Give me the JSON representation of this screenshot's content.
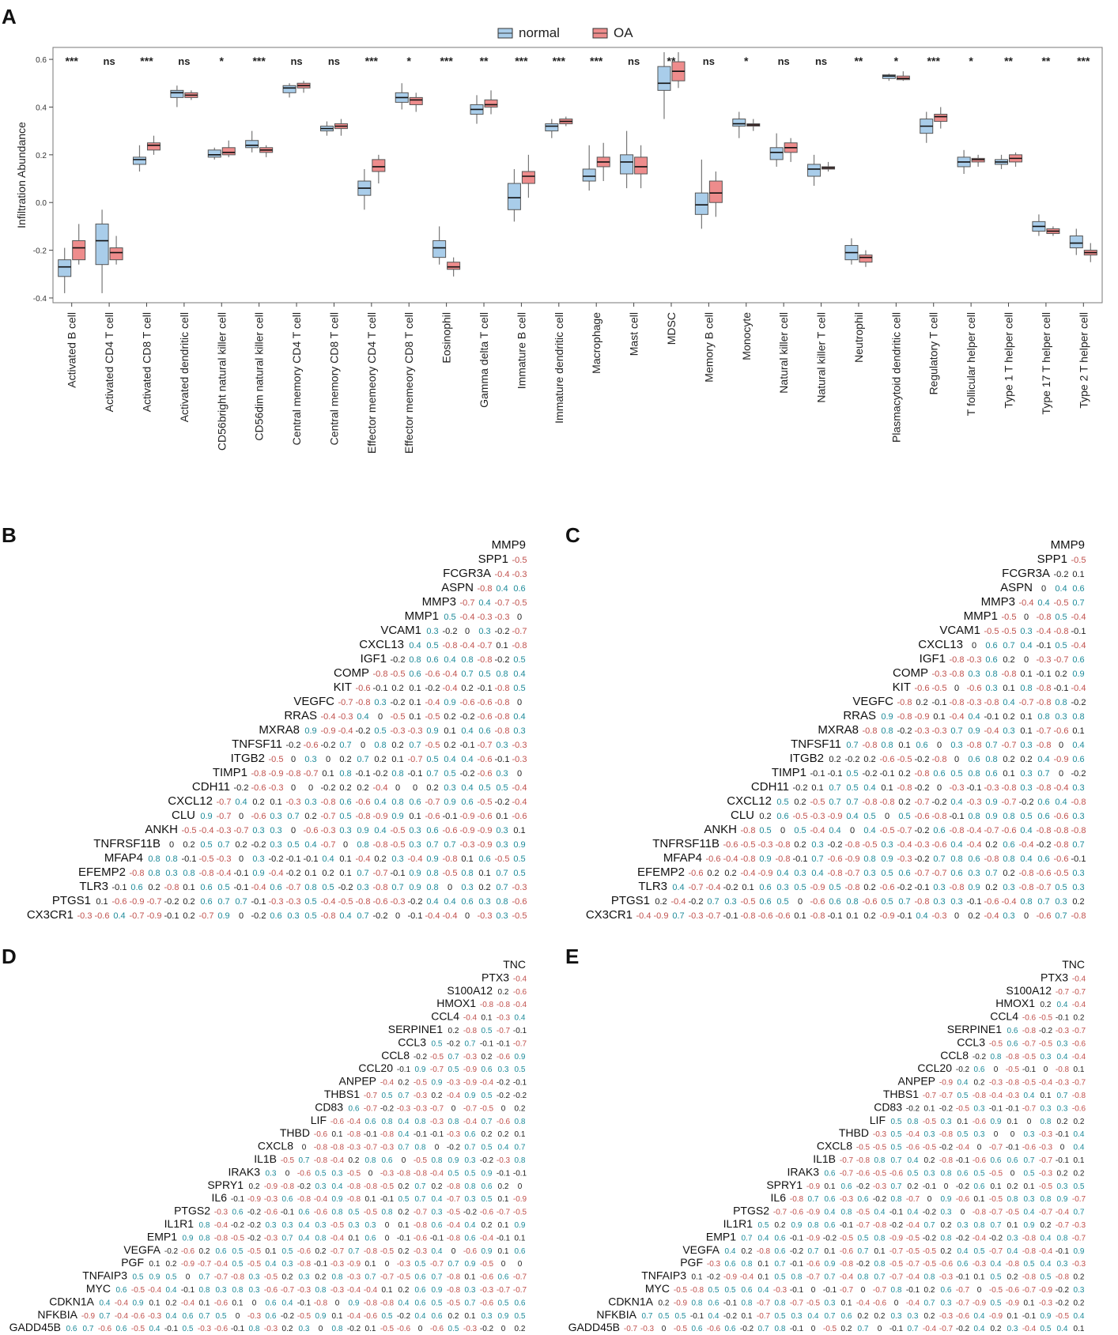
{
  "panels": {
    "A": "A",
    "B": "B",
    "C": "C",
    "D": "D",
    "E": "E"
  },
  "colors": {
    "normal": "#a9cdea",
    "oa": "#ee8c8c",
    "pos": "#1d8a99",
    "neg": "#c0514d",
    "zero": "#222222"
  },
  "chart_data": [
    {
      "type": "box",
      "title": "",
      "ylabel": "Infiltration Abundance",
      "ylim": [
        -0.42,
        0.65
      ],
      "yticks": [
        "-0.4",
        "-0.2",
        "0.0",
        "0.2",
        "0.4",
        "0.6"
      ],
      "ytick_values": [
        -0.4,
        -0.2,
        0.0,
        0.2,
        0.4,
        0.6
      ],
      "legend": {
        "position": "top-center",
        "entries": [
          "normal",
          "OA"
        ]
      },
      "categories": [
        "Activated B cell",
        "Activated CD4 T cell",
        "Activated CD8 T cell",
        "Activated dendritic cell",
        "CD56bright natural killer cell",
        "CD56dim natural killer cell",
        "Central memory CD4 T cell",
        "Central memory CD8 T cell",
        "Effector memeory CD4 T cell",
        "Effector memeory CD8 T cell",
        "Eosinophil",
        "Gamma delta T cell",
        "Immature  B cell",
        "Immature dendritic cell",
        "Macrophage",
        "Mast cell",
        "MDSC",
        "Memory B cell",
        "Monocyte",
        "Natural killer cell",
        "Natural killer T cell",
        "Neutrophil",
        "Plasmacytoid dendritic cell",
        "Regulatory T cell",
        "T follicular helper cell",
        "Type 1 T helper cell",
        "Type 17 T helper cell",
        "Type 2 T helper cell"
      ],
      "significance": [
        "***",
        "ns",
        "***",
        "ns",
        "*",
        "***",
        "ns",
        "ns",
        "***",
        "*",
        "***",
        "**",
        "***",
        "***",
        "***",
        "ns",
        "**",
        "ns",
        "*",
        "ns",
        "ns",
        "**",
        "*",
        "***",
        "*",
        "**",
        "**",
        "***"
      ],
      "series": [
        {
          "name": "normal",
          "boxes": [
            [
              -0.38,
              -0.31,
              -0.27,
              -0.24,
              -0.19
            ],
            [
              -0.38,
              -0.26,
              -0.16,
              -0.09,
              -0.03
            ],
            [
              0.13,
              0.16,
              0.18,
              0.19,
              0.24
            ],
            [
              0.4,
              0.44,
              0.46,
              0.47,
              0.49
            ],
            [
              0.18,
              0.19,
              0.2,
              0.22,
              0.23
            ],
            [
              0.21,
              0.23,
              0.24,
              0.26,
              0.3
            ],
            [
              0.44,
              0.46,
              0.48,
              0.49,
              0.5
            ],
            [
              0.28,
              0.3,
              0.31,
              0.32,
              0.34
            ],
            [
              -0.03,
              0.03,
              0.06,
              0.09,
              0.14
            ],
            [
              0.39,
              0.42,
              0.44,
              0.46,
              0.5
            ],
            [
              -0.26,
              -0.23,
              -0.19,
              -0.16,
              -0.1
            ],
            [
              0.33,
              0.37,
              0.39,
              0.41,
              0.45
            ],
            [
              -0.08,
              -0.03,
              0.02,
              0.08,
              0.14
            ],
            [
              0.27,
              0.3,
              0.32,
              0.33,
              0.35
            ],
            [
              0.05,
              0.09,
              0.11,
              0.14,
              0.24
            ],
            [
              0.06,
              0.12,
              0.17,
              0.2,
              0.3
            ],
            [
              0.35,
              0.47,
              0.5,
              0.57,
              0.63
            ],
            [
              -0.11,
              -0.05,
              -0.01,
              0.04,
              0.18
            ],
            [
              0.27,
              0.32,
              0.33,
              0.35,
              0.38
            ],
            [
              0.15,
              0.18,
              0.21,
              0.23,
              0.29
            ],
            [
              0.07,
              0.11,
              0.14,
              0.16,
              0.2
            ],
            [
              -0.26,
              -0.24,
              -0.21,
              -0.18,
              -0.15
            ],
            [
              0.51,
              0.52,
              0.53,
              0.535,
              0.54
            ],
            [
              0.25,
              0.29,
              0.32,
              0.35,
              0.38
            ],
            [
              0.12,
              0.15,
              0.17,
              0.19,
              0.22
            ],
            [
              0.14,
              0.16,
              0.17,
              0.18,
              0.2
            ],
            [
              -0.14,
              -0.12,
              -0.1,
              -0.08,
              -0.05
            ],
            [
              -0.22,
              -0.19,
              -0.17,
              -0.14,
              -0.11
            ]
          ]
        },
        {
          "name": "OA",
          "boxes": [
            [
              -0.26,
              -0.24,
              -0.19,
              -0.16,
              -0.09
            ],
            [
              -0.26,
              -0.24,
              -0.21,
              -0.19,
              -0.14
            ],
            [
              0.2,
              0.22,
              0.24,
              0.25,
              0.28
            ],
            [
              0.43,
              0.44,
              0.45,
              0.46,
              0.47
            ],
            [
              0.19,
              0.2,
              0.21,
              0.23,
              0.26
            ],
            [
              0.19,
              0.21,
              0.22,
              0.23,
              0.24
            ],
            [
              0.46,
              0.48,
              0.49,
              0.5,
              0.51
            ],
            [
              0.28,
              0.31,
              0.32,
              0.33,
              0.35
            ],
            [
              0.08,
              0.13,
              0.15,
              0.18,
              0.2
            ],
            [
              0.38,
              0.41,
              0.43,
              0.44,
              0.46
            ],
            [
              -0.31,
              -0.28,
              -0.27,
              -0.25,
              -0.23
            ],
            [
              0.37,
              0.4,
              0.41,
              0.43,
              0.47
            ],
            [
              0.02,
              0.08,
              0.11,
              0.13,
              0.2
            ],
            [
              0.32,
              0.33,
              0.34,
              0.35,
              0.36
            ],
            [
              0.09,
              0.15,
              0.17,
              0.19,
              0.25
            ],
            [
              0.06,
              0.12,
              0.15,
              0.19,
              0.24
            ],
            [
              0.48,
              0.51,
              0.55,
              0.59,
              0.63
            ],
            [
              -0.06,
              0.0,
              0.04,
              0.09,
              0.13
            ],
            [
              0.3,
              0.32,
              0.325,
              0.33,
              0.35
            ],
            [
              0.17,
              0.21,
              0.23,
              0.25,
              0.27
            ],
            [
              0.13,
              0.14,
              0.145,
              0.15,
              0.17
            ],
            [
              -0.27,
              -0.25,
              -0.23,
              -0.22,
              -0.2
            ],
            [
              0.51,
              0.515,
              0.52,
              0.53,
              0.55
            ],
            [
              0.31,
              0.34,
              0.36,
              0.37,
              0.4
            ],
            [
              0.15,
              0.17,
              0.18,
              0.185,
              0.2
            ],
            [
              0.15,
              0.17,
              0.185,
              0.2,
              0.21
            ],
            [
              -0.14,
              -0.13,
              -0.12,
              -0.11,
              -0.1
            ],
            [
              -0.25,
              -0.22,
              -0.21,
              -0.2,
              -0.17
            ]
          ]
        }
      ]
    },
    {
      "type": "heatmap",
      "panel": "B",
      "genes": [
        "MMP9",
        "SPP1",
        "FCGR3A",
        "ASPN",
        "MMP3",
        "MMP1",
        "VCAM1",
        "CXCL13",
        "IGF1",
        "COMP",
        "KIT",
        "VEGFC",
        "RRAS",
        "MXRA8",
        "TNFSF11",
        "ITGB2",
        "TIMP1",
        "CDH11",
        "CXCL12",
        "CLU",
        "ANKH",
        "TNFRSF11B",
        "MFAP4",
        "EFEMP2",
        "TLR3",
        "PTGS1",
        "CX3CR1"
      ],
      "seed": 11
    },
    {
      "type": "heatmap",
      "panel": "C",
      "genes": [
        "MMP9",
        "SPP1",
        "FCGR3A",
        "ASPN",
        "MMP3",
        "MMP1",
        "VCAM1",
        "CXCL13",
        "IGF1",
        "COMP",
        "KIT",
        "VEGFC",
        "RRAS",
        "MXRA8",
        "TNFSF11",
        "ITGB2",
        "TIMP1",
        "CDH11",
        "CXCL12",
        "CLU",
        "ANKH",
        "TNFRSF11B",
        "MFAP4",
        "EFEMP2",
        "TLR3",
        "PTGS1",
        "CX3CR1"
      ],
      "seed": 23
    },
    {
      "type": "heatmap",
      "panel": "D",
      "genes": [
        "TNC",
        "PTX3",
        "S100A12",
        "HMOX1",
        "CCL4",
        "SERPINE1",
        "CCL3",
        "CCL8",
        "CCL20",
        "ANPEP",
        "THBS1",
        "CD83",
        "LIF",
        "THBD",
        "CXCL8",
        "IL1B",
        "IRAK3",
        "SPRY1",
        "IL6",
        "PTGS2",
        "IL1R1",
        "EMP1",
        "VEGFA",
        "PGF",
        "TNFAIP3",
        "MYC",
        "CDKN1A",
        "NFKBIA",
        "GADD45B"
      ],
      "seed": 37
    },
    {
      "type": "heatmap",
      "panel": "E",
      "genes": [
        "TNC",
        "PTX3",
        "S100A12",
        "HMOX1",
        "CCL4",
        "SERPINE1",
        "CCL3",
        "CCL8",
        "CCL20",
        "ANPEP",
        "THBS1",
        "CD83",
        "LIF",
        "THBD",
        "CXCL8",
        "IL1B",
        "IRAK3",
        "SPRY1",
        "IL6",
        "PTGS2",
        "IL1R1",
        "EMP1",
        "VEGFA",
        "PGF",
        "TNFAIP3",
        "MYC",
        "CDKN1A",
        "NFKBIA",
        "GADD45B"
      ],
      "seed": 53
    }
  ]
}
